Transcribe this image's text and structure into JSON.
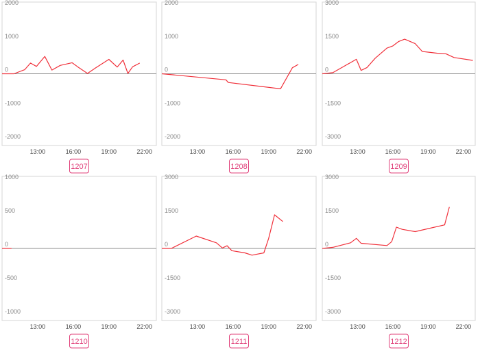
{
  "theme": {
    "line_color": "#f0303a",
    "badge_color": "#e0407a",
    "frame_color": "#d4d4d4",
    "zero_color": "#8c8c8c"
  },
  "chart_data": [
    {
      "type": "line",
      "badge": "1207",
      "yticks": [
        "2000",
        "1000",
        "0",
        "-1000",
        "-2000"
      ],
      "ylim": [
        -2000,
        2000
      ],
      "xticks": [
        "13:00",
        "16:00",
        "19:00",
        "22:00"
      ],
      "xlim": [
        10,
        23
      ],
      "grid": false,
      "series": [
        {
          "x": [
            10,
            11,
            11.9,
            12.4,
            12.9,
            13.6,
            14.2,
            14.9,
            15.9,
            16.4,
            17.2,
            17.9,
            19,
            19.7,
            20.2,
            20.6,
            21,
            21.6
          ],
          "y": [
            0,
            0,
            120,
            320,
            220,
            520,
            110,
            250,
            330,
            200,
            10,
            180,
            430,
            200,
            410,
            10,
            210,
            320
          ]
        }
      ]
    },
    {
      "type": "line",
      "badge": "1208",
      "yticks": [
        "2000",
        "1000",
        "0",
        "-1000",
        "-2000"
      ],
      "ylim": [
        -2000,
        2000
      ],
      "xticks": [
        "13:00",
        "16:00",
        "19:00",
        "22:00"
      ],
      "xlim": [
        10,
        23
      ],
      "grid": false,
      "series": [
        {
          "x": [
            10,
            15.4,
            15.6,
            20,
            21,
            21.5
          ],
          "y": [
            0,
            -180,
            -260,
            -450,
            180,
            280
          ]
        }
      ]
    },
    {
      "type": "line",
      "badge": "1209",
      "yticks": [
        "3000",
        "1500",
        "0",
        "-1500",
        "-3000"
      ],
      "ylim": [
        -3000,
        3000
      ],
      "xticks": [
        "13:00",
        "16:00",
        "19:00",
        "22:00"
      ],
      "xlim": [
        10,
        23
      ],
      "grid": false,
      "series": [
        {
          "x": [
            10,
            10.9,
            12.9,
            13.3,
            13.8,
            14.5,
            15.5,
            16,
            16.5,
            17,
            17.9,
            18.5,
            19.8,
            20.5,
            21.2,
            22.8
          ],
          "y": [
            0,
            50,
            650,
            150,
            280,
            700,
            1150,
            1250,
            1450,
            1550,
            1350,
            1000,
            920,
            900,
            730,
            600
          ]
        }
      ]
    },
    {
      "type": "line",
      "badge": "1210",
      "yticks": [
        "1000",
        "500",
        "0",
        "-500",
        "-1000"
      ],
      "ylim": [
        -1000,
        1000
      ],
      "xticks": [
        "13:00",
        "16:00",
        "19:00",
        "22:00"
      ],
      "xlim": [
        10,
        23
      ],
      "grid": false,
      "series": [
        {
          "x": [
            10,
            10.8
          ],
          "y": [
            0,
            0
          ]
        }
      ]
    },
    {
      "type": "line",
      "badge": "1211",
      "yticks": [
        "3000",
        "1500",
        "0",
        "-1500",
        "-3000"
      ],
      "ylim": [
        -3000,
        3000
      ],
      "xticks": [
        "13:00",
        "16:00",
        "19:00",
        "22:00"
      ],
      "xlim": [
        10,
        23
      ],
      "grid": false,
      "series": [
        {
          "x": [
            10,
            10.8,
            12.9,
            14.6,
            15.1,
            15.5,
            15.9,
            17,
            17.6,
            18.6,
            19,
            19.5,
            20.2
          ],
          "y": [
            0,
            0,
            550,
            250,
            20,
            120,
            -100,
            -200,
            -300,
            -200,
            450,
            1500,
            1200
          ]
        }
      ]
    },
    {
      "type": "line",
      "badge": "1212",
      "yticks": [
        "3000",
        "1500",
        "0",
        "-1500",
        "-3000"
      ],
      "ylim": [
        -3000,
        3000
      ],
      "xticks": [
        "13:00",
        "16:00",
        "19:00",
        "22:00"
      ],
      "xlim": [
        10,
        23
      ],
      "grid": false,
      "series": [
        {
          "x": [
            10,
            10.9,
            12.4,
            12.9,
            13.3,
            15.5,
            15.9,
            16.3,
            16.8,
            17.9,
            20.4,
            20.8
          ],
          "y": [
            0,
            50,
            250,
            450,
            230,
            130,
            300,
            950,
            850,
            750,
            1050,
            1850
          ]
        }
      ]
    }
  ]
}
